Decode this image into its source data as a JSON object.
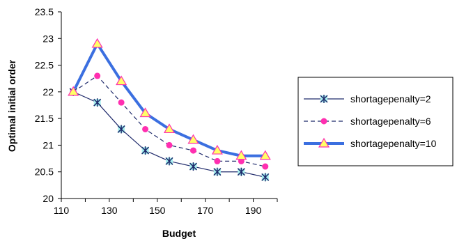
{
  "chart_data": {
    "type": "line",
    "title": "",
    "xlabel": "Budget",
    "ylabel": "Optimal initial order",
    "xlim": [
      110,
      200
    ],
    "ylim": [
      20,
      23.5
    ],
    "xticks": [
      110,
      130,
      150,
      170,
      190
    ],
    "yticks": [
      20,
      20.5,
      21,
      21.5,
      22,
      22.5,
      23,
      23.5
    ],
    "x": [
      115,
      125,
      135,
      145,
      155,
      165,
      175,
      185,
      195
    ],
    "grid": false,
    "legend_position": "right",
    "series": [
      {
        "name": "shortagepenalty=2",
        "values": [
          22.0,
          21.8,
          21.3,
          20.9,
          20.7,
          20.6,
          20.5,
          20.5,
          20.4
        ],
        "color": "#1f2a6b",
        "line_style": "solid",
        "marker": "asterisk",
        "marker_color": "#1f2a6b",
        "marker_fill": "#a8f0f0"
      },
      {
        "name": "shortagepenalty=6",
        "values": [
          22.0,
          22.3,
          21.8,
          21.3,
          21.0,
          20.9,
          20.7,
          20.7,
          20.6
        ],
        "color": "#1f2a6b",
        "line_style": "dashed",
        "marker": "circle",
        "marker_color": "#ff2fb0",
        "marker_fill": "#ff2fb0"
      },
      {
        "name": "shortagepenalty=10",
        "values": [
          22.0,
          22.9,
          22.2,
          21.6,
          21.3,
          21.1,
          20.9,
          20.8,
          20.8
        ],
        "color": "#3b6fe0",
        "line_style": "thick",
        "marker": "triangle",
        "marker_color": "#ff2fb0",
        "marker_fill": "#ffff66"
      }
    ]
  }
}
